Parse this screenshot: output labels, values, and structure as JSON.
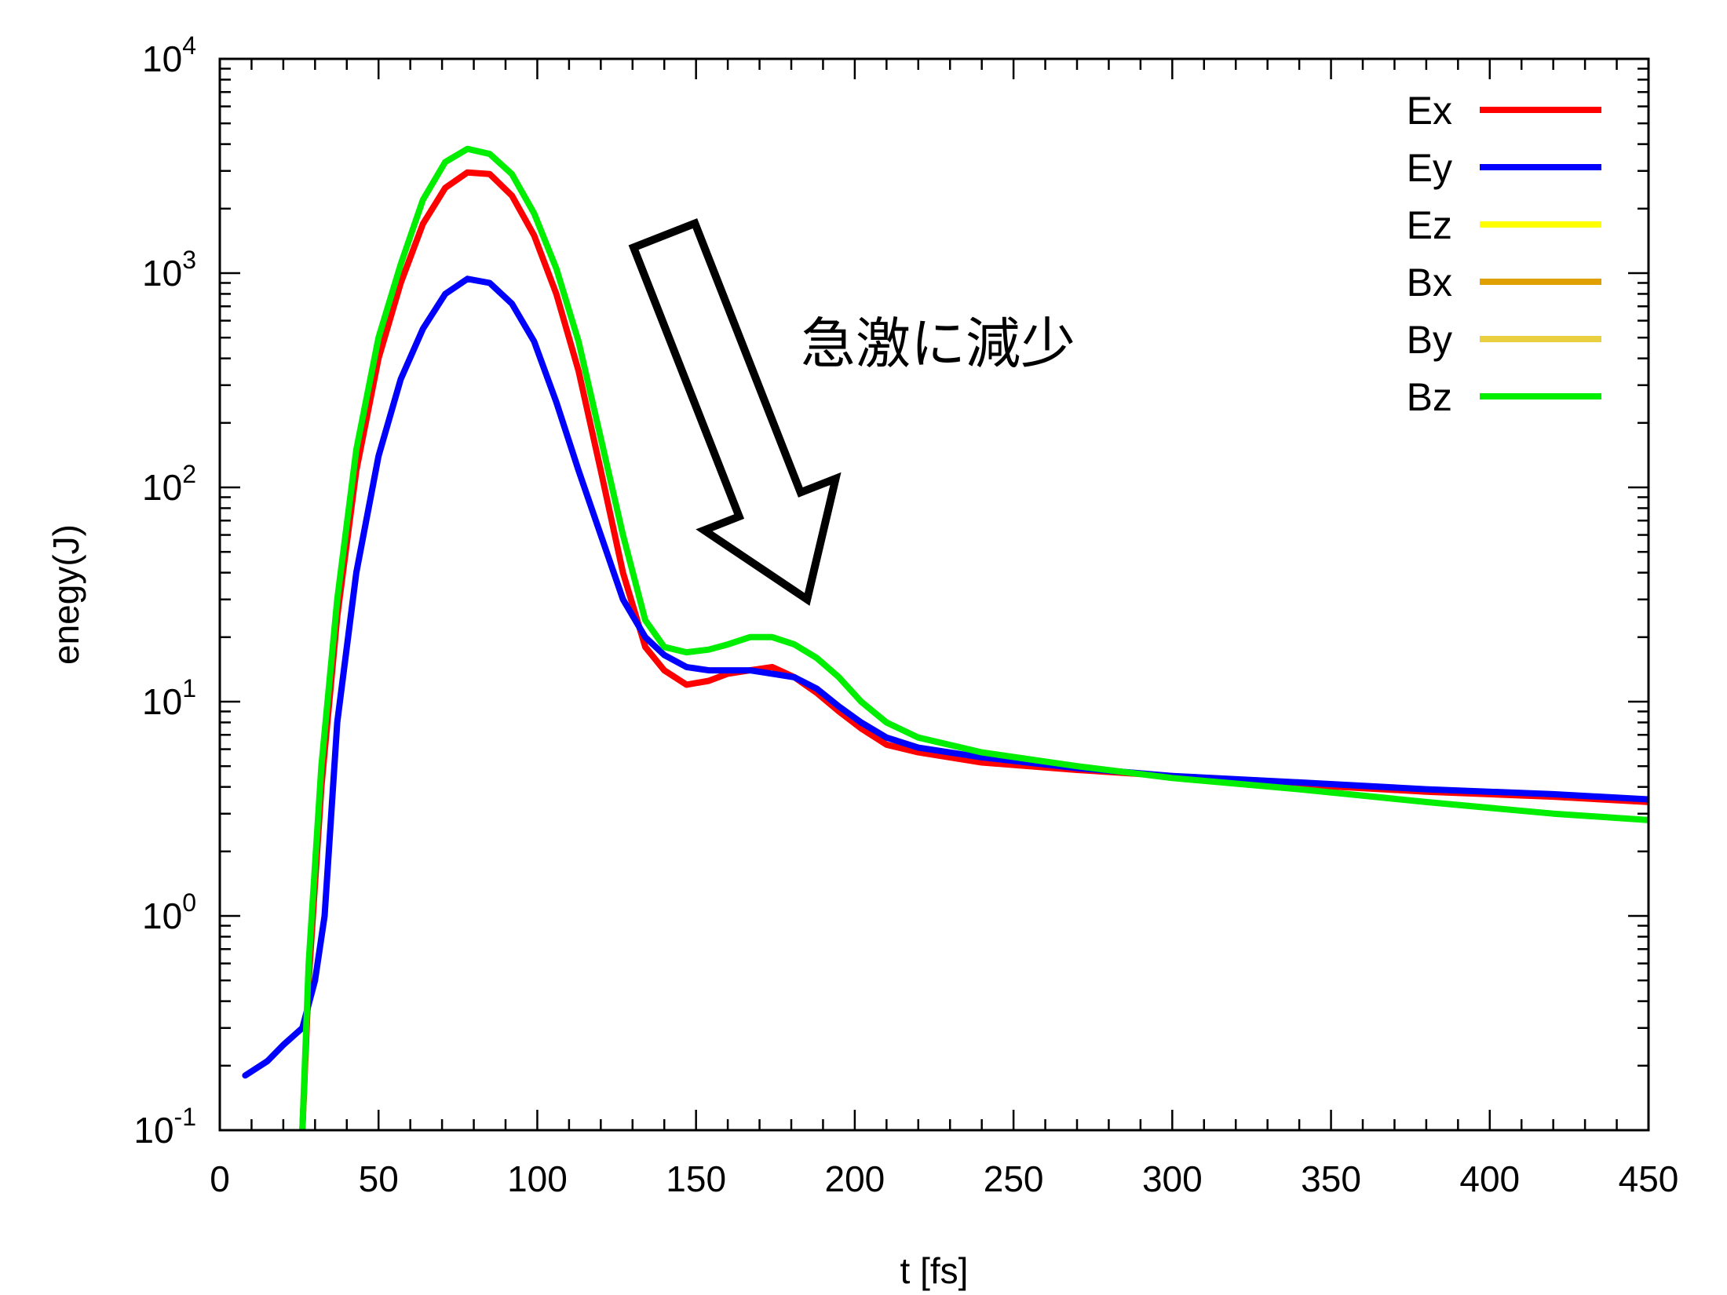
{
  "chart_data": {
    "type": "line",
    "title": "",
    "xlabel": "t [fs]",
    "ylabel": "enegy(J)",
    "xlim": [
      0,
      450
    ],
    "ylim": [
      0.1,
      10000
    ],
    "y_scale": "log",
    "grid": false,
    "legend_position": "top-right",
    "x_ticks": [
      0,
      50,
      100,
      150,
      200,
      250,
      300,
      350,
      400,
      450
    ],
    "x_tick_labels": [
      "0",
      "50",
      "100",
      "150",
      "200",
      "250",
      "300",
      "350",
      "400",
      "450"
    ],
    "y_ticks": [
      {
        "value": 0.1,
        "base": "10",
        "exp": "-1"
      },
      {
        "value": 1,
        "base": "10",
        "exp": "0"
      },
      {
        "value": 10,
        "base": "10",
        "exp": "1"
      },
      {
        "value": 100,
        "base": "10",
        "exp": "2"
      },
      {
        "value": 1000,
        "base": "10",
        "exp": "3"
      },
      {
        "value": 10000,
        "base": "10",
        "exp": "4"
      }
    ],
    "annotation": {
      "text": "急激に減少",
      "arrow_from": {
        "x": 140,
        "y": 1500
      },
      "arrow_to": {
        "x": 185,
        "y": 30
      }
    },
    "series": [
      {
        "name": "Ex",
        "color": "#ff0000",
        "x": [
          26,
          28,
          32,
          37,
          43,
          50,
          57,
          64,
          71,
          78,
          85,
          92,
          99,
          106,
          113,
          120,
          127,
          134,
          140,
          147,
          154,
          160,
          167,
          174,
          181,
          188,
          195,
          202,
          210,
          220,
          240,
          270,
          300,
          340,
          380,
          420,
          450
        ],
        "y": [
          0.1,
          0.5,
          4,
          25,
          120,
          400,
          900,
          1700,
          2500,
          2950,
          2900,
          2300,
          1500,
          800,
          350,
          120,
          40,
          18,
          14,
          12,
          12.5,
          13.5,
          14,
          14.5,
          13,
          11,
          9,
          7.5,
          6.3,
          5.8,
          5.2,
          4.8,
          4.5,
          4.1,
          3.8,
          3.6,
          3.4
        ]
      },
      {
        "name": "Ey",
        "color": "#0000ff",
        "x": [
          8,
          15,
          20,
          26,
          30,
          33,
          37,
          43,
          50,
          57,
          64,
          71,
          78,
          85,
          92,
          99,
          106,
          113,
          120,
          127,
          134,
          140,
          147,
          154,
          160,
          167,
          174,
          181,
          188,
          195,
          202,
          210,
          220,
          240,
          270,
          300,
          340,
          380,
          420,
          450
        ],
        "y": [
          0.18,
          0.21,
          0.25,
          0.3,
          0.5,
          1.0,
          8,
          40,
          140,
          320,
          550,
          800,
          940,
          900,
          720,
          480,
          250,
          120,
          60,
          30,
          20,
          16.5,
          14.5,
          14,
          14,
          14,
          13.5,
          13,
          11.5,
          9.5,
          8,
          6.8,
          6.1,
          5.5,
          4.9,
          4.5,
          4.2,
          3.9,
          3.7,
          3.5
        ]
      },
      {
        "name": "Ez",
        "color": "#ffff00",
        "x": [],
        "y": []
      },
      {
        "name": "Bx",
        "color": "#e0a000",
        "x": [],
        "y": []
      },
      {
        "name": "By",
        "color": "#e8d040",
        "x": [],
        "y": []
      },
      {
        "name": "Bz",
        "color": "#00ee00",
        "x": [
          26,
          28,
          32,
          37,
          43,
          50,
          57,
          64,
          71,
          78,
          85,
          92,
          99,
          106,
          113,
          120,
          127,
          134,
          140,
          147,
          154,
          160,
          167,
          174,
          181,
          188,
          195,
          202,
          210,
          220,
          240,
          270,
          300,
          340,
          380,
          420,
          450
        ],
        "y": [
          0.1,
          0.6,
          5,
          30,
          150,
          500,
          1100,
          2200,
          3300,
          3800,
          3600,
          2900,
          1900,
          1050,
          480,
          170,
          60,
          24,
          18,
          17,
          17.5,
          18.5,
          20,
          20,
          18.5,
          16,
          13,
          10,
          8,
          6.8,
          5.8,
          5,
          4.4,
          3.9,
          3.4,
          3.0,
          2.8
        ]
      }
    ]
  }
}
